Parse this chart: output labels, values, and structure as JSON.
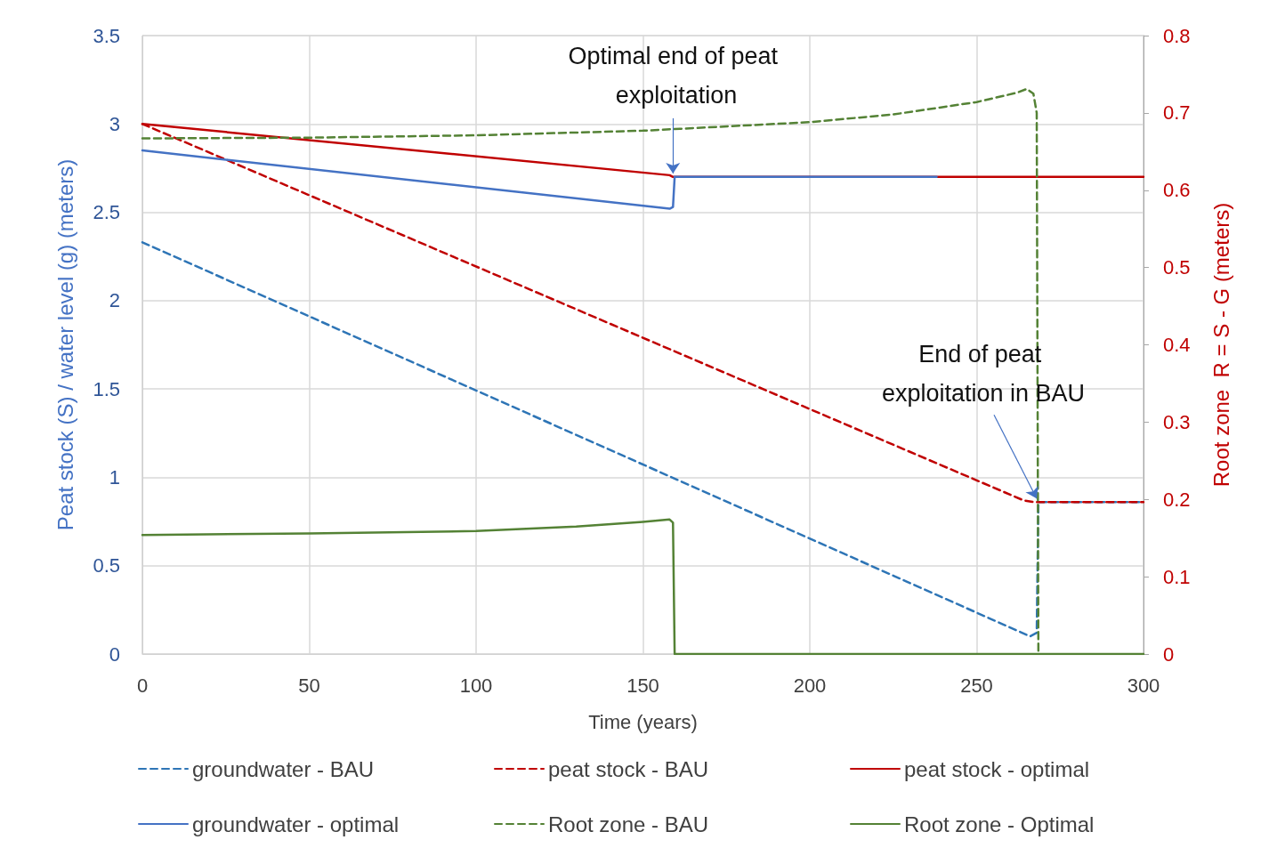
{
  "chart_data": {
    "type": "line",
    "xlabel": "Time (years)",
    "ylabel": "Peat stock (S) / water level (g) (meters)",
    "y2label": "Root zone  R = S - G (meters)",
    "xlim": [
      0,
      300
    ],
    "xticks": [
      0,
      50,
      100,
      150,
      200,
      250,
      300
    ],
    "ylim": [
      0,
      3.5
    ],
    "yticks": [
      0,
      0.5,
      1,
      1.5,
      2,
      2.5,
      3,
      3.5
    ],
    "y2lim": [
      0,
      0.8
    ],
    "y2ticks": [
      0,
      0.1,
      0.2,
      0.3,
      0.4,
      0.5,
      0.6,
      0.7,
      0.8
    ],
    "grid": true,
    "legend": "bottom",
    "marker": "none",
    "series": [
      {
        "name": "groundwater - BAU",
        "color": "#2e75b6",
        "line_style": "dashed",
        "x": [
          0,
          266,
          268,
          268.5,
          300
        ],
        "values": [
          2.33,
          0.1,
          0.12,
          0.86,
          0.86
        ]
      },
      {
        "name": "peat stock - BAU",
        "color": "#c00000",
        "line_style": "dashed",
        "x": [
          0,
          264,
          267,
          300
        ],
        "values": [
          3.0,
          0.87,
          0.86,
          0.86
        ]
      },
      {
        "name": "peat stock - optimal",
        "color": "#c00000",
        "line_style": "solid",
        "x": [
          0,
          158,
          159,
          300
        ],
        "values": [
          3.0,
          2.71,
          2.7,
          2.7
        ]
      },
      {
        "name": "groundwater - optimal",
        "color": "#4472c4",
        "line_style": "solid",
        "x": [
          0,
          158,
          159,
          159.5,
          238
        ],
        "values": [
          2.85,
          2.52,
          2.53,
          2.7,
          2.7
        ]
      },
      {
        "name": "Root zone - BAU",
        "color": "#548235",
        "axis": "y2",
        "line_style": "dashed",
        "x": [
          0,
          50,
          100,
          150,
          200,
          225,
          250,
          262,
          265,
          267,
          268,
          268.5
        ],
        "values": [
          0.667,
          0.668,
          0.671,
          0.677,
          0.688,
          0.698,
          0.714,
          0.726,
          0.731,
          0.725,
          0.7,
          0
        ]
      },
      {
        "name": "Root zone - Optimal",
        "color": "#548235",
        "axis": "y2",
        "line_style": "solid",
        "x": [
          0,
          50,
          100,
          130,
          150,
          158,
          159,
          159.5,
          300
        ],
        "values": [
          0.154,
          0.156,
          0.159,
          0.165,
          0.171,
          0.174,
          0.17,
          0,
          0
        ]
      }
    ],
    "annotations": [
      {
        "text": "Optimal end of peat exploitation",
        "x": 159,
        "y": 2.72
      },
      {
        "text": "End of peat exploitation in BAU",
        "x": 268,
        "y": 0.88
      }
    ]
  }
}
